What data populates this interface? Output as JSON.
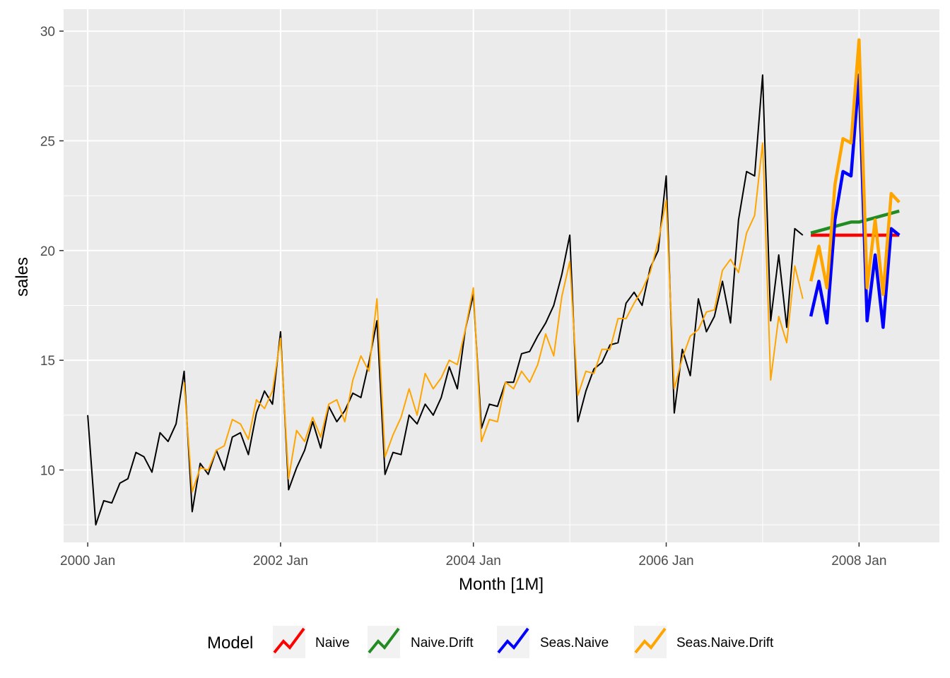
{
  "chart_data": {
    "type": "line",
    "title": "",
    "xlabel": "Month [1M]",
    "ylabel": "sales",
    "xlim": [
      "1999-10",
      "2008-11"
    ],
    "ylim": [
      6.7,
      31.0
    ],
    "x_ticks": [
      "2000 Jan",
      "2002 Jan",
      "2004 Jan",
      "2006 Jan",
      "2008 Jan"
    ],
    "x_tick_dates": [
      "2000-01",
      "2002-01",
      "2004-01",
      "2006-01",
      "2008-01"
    ],
    "y_ticks": [
      10,
      15,
      20,
      25,
      30
    ],
    "grid": true,
    "legend": {
      "title": "Model",
      "position": "bottom",
      "entries": [
        "Naive",
        "Naive.Drift",
        "Seas.Naive",
        "Seas.Naive.Drift"
      ]
    },
    "colors": {
      "actual": "#000000",
      "Naive": "#ff0000",
      "Naive.Drift": "#228b22",
      "Seas.Naive": "#0000ff",
      "Seas.Naive.Drift": "#ffa500"
    },
    "actual": {
      "start": "2000-01",
      "values": [
        12.5,
        7.5,
        8.6,
        8.5,
        9.4,
        9.6,
        10.8,
        10.6,
        9.9,
        11.7,
        11.3,
        12.1,
        14.5,
        8.1,
        10.3,
        9.8,
        10.9,
        10.0,
        11.5,
        11.7,
        10.7,
        12.6,
        13.6,
        13.0,
        16.3,
        9.1,
        10.1,
        10.9,
        12.2,
        11.0,
        12.9,
        12.2,
        12.7,
        13.5,
        13.3,
        14.9,
        16.8,
        9.8,
        10.8,
        10.7,
        12.5,
        12.1,
        13.0,
        12.5,
        13.3,
        14.7,
        13.7,
        16.4,
        18.0,
        11.9,
        13.0,
        12.9,
        14.0,
        14.0,
        15.3,
        15.4,
        16.1,
        16.7,
        17.5,
        18.9,
        20.7,
        12.2,
        13.6,
        14.6,
        14.9,
        15.7,
        15.8,
        17.6,
        18.1,
        17.5,
        19.2,
        20.0,
        23.4,
        12.6,
        15.5,
        14.3,
        17.8,
        16.3,
        17.0,
        18.6,
        16.7,
        21.4,
        23.6,
        23.4,
        28.0,
        16.8,
        19.8,
        16.5,
        21.0,
        20.7
      ]
    },
    "fitted_seasonal_drift": {
      "start": "2001-01",
      "values": [
        14.0,
        9.0,
        10.1,
        10.0,
        10.9,
        11.1,
        12.3,
        12.1,
        11.4,
        13.2,
        12.8,
        13.6,
        16.0,
        9.6,
        11.8,
        11.3,
        12.4,
        11.5,
        13.0,
        13.2,
        12.2,
        14.1,
        15.2,
        14.5,
        17.8,
        10.6,
        11.6,
        12.4,
        13.7,
        12.5,
        14.4,
        13.7,
        14.2,
        15.0,
        14.8,
        16.4,
        18.3,
        11.3,
        12.3,
        12.2,
        14.0,
        13.7,
        14.5,
        14.0,
        14.8,
        16.2,
        15.2,
        17.9,
        19.5,
        13.4,
        14.5,
        14.4,
        15.5,
        15.5,
        16.9,
        16.9,
        17.6,
        18.2,
        19.0,
        20.4,
        22.3,
        13.7,
        15.1,
        16.1,
        16.4,
        17.2,
        17.3,
        19.1,
        19.6,
        19.0,
        20.8,
        21.6,
        24.9,
        14.1,
        17.0,
        15.8,
        19.3,
        17.8
      ]
    },
    "forecast_start": "2007-07",
    "series": [
      {
        "name": "Naive",
        "values": [
          20.7,
          20.7,
          20.7,
          20.7,
          20.7,
          20.7,
          20.7,
          20.7,
          20.7,
          20.7,
          20.7,
          20.7
        ]
      },
      {
        "name": "Naive.Drift",
        "values": [
          20.8,
          20.9,
          21.0,
          21.1,
          21.2,
          21.3,
          21.3,
          21.4,
          21.5,
          21.6,
          21.7,
          21.8
        ]
      },
      {
        "name": "Seas.Naive",
        "values": [
          17.0,
          18.6,
          16.7,
          21.4,
          23.6,
          23.4,
          28.0,
          16.8,
          19.8,
          16.5,
          21.0,
          20.7
        ]
      },
      {
        "name": "Seas.Naive.Drift",
        "values": [
          18.6,
          20.2,
          18.3,
          23.0,
          25.1,
          24.9,
          29.6,
          18.3,
          21.4,
          18.0,
          22.6,
          22.2
        ]
      }
    ]
  }
}
